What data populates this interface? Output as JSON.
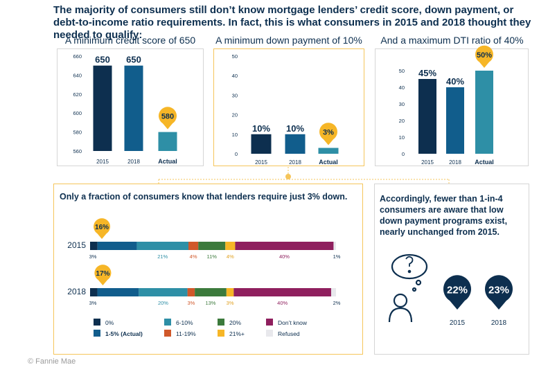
{
  "headline": "The majority of consumers still don’t know mortgage lenders’ credit score, down payment, or debt-to-income ratio requirements. In fact, this is what consumers in 2015 and 2018 thought they needed to qualify:",
  "colors": {
    "navy": "#0d2f4f",
    "blue": "#115d8c",
    "teal": "#2e8fa6",
    "orange": "#d0582a",
    "green": "#3c7a3c",
    "yellow": "#f6b627",
    "maroon": "#8f1f5e",
    "refused": "#e8e8ec"
  },
  "bottom_title": "Only a fraction of consumers know that lenders require just 3% down.",
  "side_text": "Accordingly, fewer than 1-in-4 consumers are aware that low down payment programs exist, nearly unchanged from 2015.",
  "footer": "© Fannie Mae",
  "chart_data": [
    {
      "type": "bar",
      "title": "A minimum credit score of 650",
      "categories": [
        "2015",
        "2018",
        "Actual"
      ],
      "values": [
        650,
        650,
        580
      ],
      "value_labels": [
        "650",
        "650",
        "580"
      ],
      "ylim": [
        560,
        660
      ],
      "yticks": [
        "560",
        "580",
        "600",
        "620",
        "640",
        "660"
      ],
      "ytick_values": [
        560,
        580,
        600,
        620,
        640,
        660
      ]
    },
    {
      "type": "bar",
      "title": "A minimum down payment of 10%",
      "categories": [
        "2015",
        "2018",
        "Actual"
      ],
      "values": [
        10,
        10,
        3
      ],
      "value_labels": [
        "10%",
        "10%",
        "3%"
      ],
      "ylim": [
        0,
        50
      ],
      "yticks": [
        "0",
        "10",
        "20",
        "30",
        "40",
        "50"
      ],
      "ytick_values": [
        0,
        10,
        20,
        30,
        40,
        50
      ]
    },
    {
      "type": "bar",
      "title": "And a maximum DTI ratio of 40%",
      "categories": [
        "2015",
        "2018",
        "Actual"
      ],
      "values": [
        45,
        40,
        50
      ],
      "value_labels": [
        "45%",
        "40%",
        "50%"
      ],
      "ylim": [
        0,
        50
      ],
      "yticks": [
        "0",
        "10",
        "20",
        "30",
        "40",
        "50"
      ],
      "ytick_values": [
        0,
        10,
        20,
        30,
        40,
        50
      ]
    },
    {
      "type": "bar",
      "stacked": true,
      "horizontal": true,
      "categories": [
        "2015",
        "2018"
      ],
      "callouts": [
        "16%",
        "17%"
      ],
      "series": [
        {
          "name": "0%",
          "color": "navy",
          "values": [
            3,
            3
          ],
          "labels": [
            "3%",
            "3%"
          ]
        },
        {
          "name": "1-5% (Actual)",
          "color": "blue",
          "values": [
            16,
            17
          ],
          "labels": [
            "",
            ""
          ]
        },
        {
          "name": "6-10%",
          "color": "teal",
          "values": [
            21,
            20
          ],
          "labels": [
            "21%",
            "20%"
          ]
        },
        {
          "name": "11-19%",
          "color": "orange",
          "values": [
            4,
            3
          ],
          "labels": [
            "4%",
            "3%"
          ]
        },
        {
          "name": "20%",
          "color": "green",
          "values": [
            11,
            13
          ],
          "labels": [
            "11%",
            "13%"
          ]
        },
        {
          "name": "21%+",
          "color": "yellow",
          "values": [
            4,
            3
          ],
          "labels": [
            "4%",
            "3%"
          ]
        },
        {
          "name": "Don’t know",
          "color": "maroon",
          "values": [
            40,
            40
          ],
          "labels": [
            "40%",
            "40%"
          ]
        },
        {
          "name": "Refused",
          "color": "refused",
          "values": [
            1,
            2
          ],
          "labels": [
            "1%",
            "2%"
          ]
        }
      ]
    },
    {
      "type": "bar",
      "categories": [
        "2015",
        "2018"
      ],
      "values": [
        22,
        23
      ],
      "value_labels": [
        "22%",
        "23%"
      ]
    }
  ]
}
